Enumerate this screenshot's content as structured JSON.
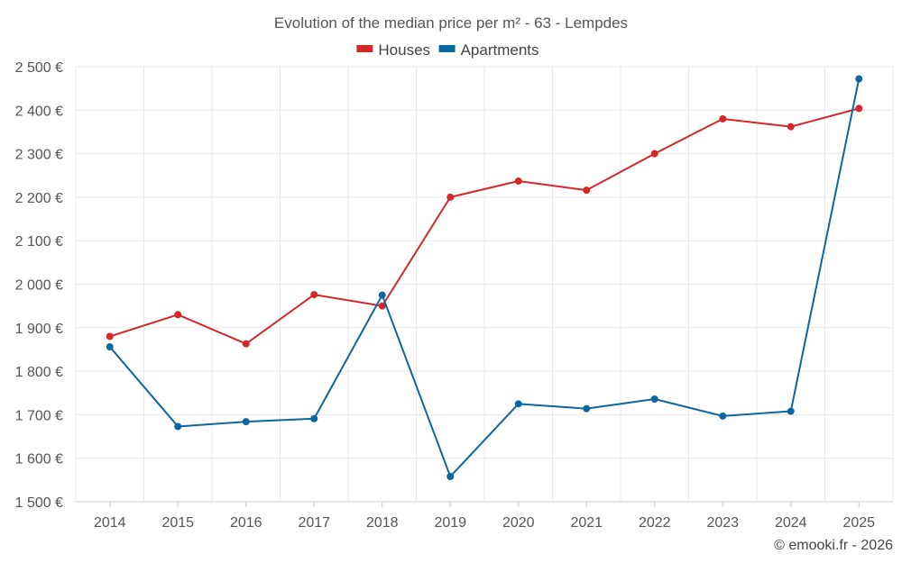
{
  "chart_data": {
    "type": "line",
    "title": "Evolution of the median price per m² - 63 - Lempdes",
    "categories": [
      "2014",
      "2015",
      "2016",
      "2017",
      "2018",
      "2019",
      "2020",
      "2021",
      "2022",
      "2023",
      "2024",
      "2025"
    ],
    "series": [
      {
        "name": "Houses",
        "color": "#d62728",
        "values": [
          1880,
          1930,
          1863,
          1976,
          1950,
          2200,
          2237,
          2216,
          2300,
          2380,
          2362,
          2404
        ]
      },
      {
        "name": "Apartments",
        "color": "#0b67a0",
        "values": [
          1856,
          1673,
          1684,
          1691,
          1975,
          1558,
          1725,
          1714,
          1736,
          1697,
          1708,
          2472
        ]
      }
    ],
    "ylim": [
      1500,
      2500
    ],
    "yticks": [
      1500,
      1600,
      1700,
      1800,
      1900,
      2000,
      2100,
      2200,
      2300,
      2400,
      2500
    ],
    "ytick_labels": [
      "1 500 €",
      "1 600 €",
      "1 700 €",
      "1 800 €",
      "1 900 €",
      "2 000 €",
      "2 100 €",
      "2 200 €",
      "2 300 €",
      "2 400 €",
      "2 500 €"
    ],
    "legend_position": "top-center",
    "grid": true,
    "xlabel": "",
    "ylabel": ""
  },
  "credit": "© emooki.fr - 2026"
}
